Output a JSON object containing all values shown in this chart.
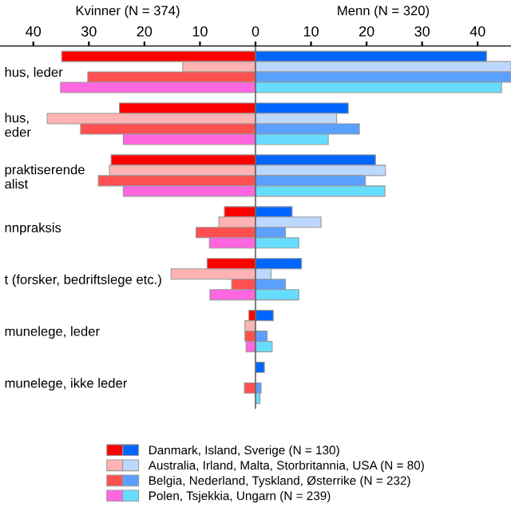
{
  "chart_data": [
    {
      "type": "bar",
      "orientation": "horizontal",
      "title": "Kvinner (N = 374)",
      "legend": "bottom",
      "categories": [
        "hus, leder",
        "hus,\neder",
        "praktiserende\nalist",
        "nnpraksis",
        "t (forsker, bedriftslege etc.)",
        "munelege, leder",
        "munelege, ikke leder"
      ],
      "xlim": [
        46,
        0
      ],
      "xticks": [
        10,
        20,
        30,
        40
      ],
      "series": [
        {
          "name": "Danmark, Island, Sverige (N = 130)",
          "color": "#ff0000",
          "values": [
            34.9,
            24.5,
            26,
            5.6,
            8.7,
            1.2,
            null
          ]
        },
        {
          "name": "Australia, Irland, Malta, Storbritannia, USA (N = 80)",
          "color": "#ffb3b3",
          "values": [
            13.1,
            37.5,
            26.3,
            6.6,
            15.2,
            1.9,
            null
          ]
        },
        {
          "name": "Belgia, Nederland, Tyskland, Østerrike (N = 232)",
          "color": "#ff5050",
          "values": [
            30.2,
            31.5,
            28.3,
            10.7,
            4.3,
            1.9,
            2.0
          ]
        },
        {
          "name": "Polen, Tsjekkia, Ungarn (N = 239)",
          "color": "#ff66e0",
          "values": [
            35.1,
            23.8,
            23.8,
            8.3,
            8.2,
            1.7,
            null
          ]
        }
      ]
    },
    {
      "type": "bar",
      "orientation": "horizontal",
      "title": "Menn (N = 320)",
      "tick_labels": "x",
      "categories": [
        null,
        null,
        null,
        null,
        null,
        null,
        null
      ],
      "xlim": [
        0,
        46
      ],
      "xticks": [
        0,
        10,
        20,
        30,
        40
      ],
      "series": [
        {
          "color": "#0066ff",
          "values": [
            41.6,
            16.7,
            21.6,
            6.6,
            8.3,
            3.2,
            1.6
          ]
        },
        {
          "color": "#bcd8ff",
          "values": [
            46,
            14.6,
            23.4,
            11.8,
            2.8,
            null,
            null
          ]
        },
        {
          "color": "#5aa0ff",
          "values": [
            46,
            18.7,
            19.8,
            5.4,
            5.4,
            2.1,
            1.0
          ]
        },
        {
          "color": "#66ddff",
          "values": [
            44.3,
            13.1,
            23.3,
            7.8,
            7.8,
            3.0,
            0.8
          ]
        }
      ]
    }
  ]
}
